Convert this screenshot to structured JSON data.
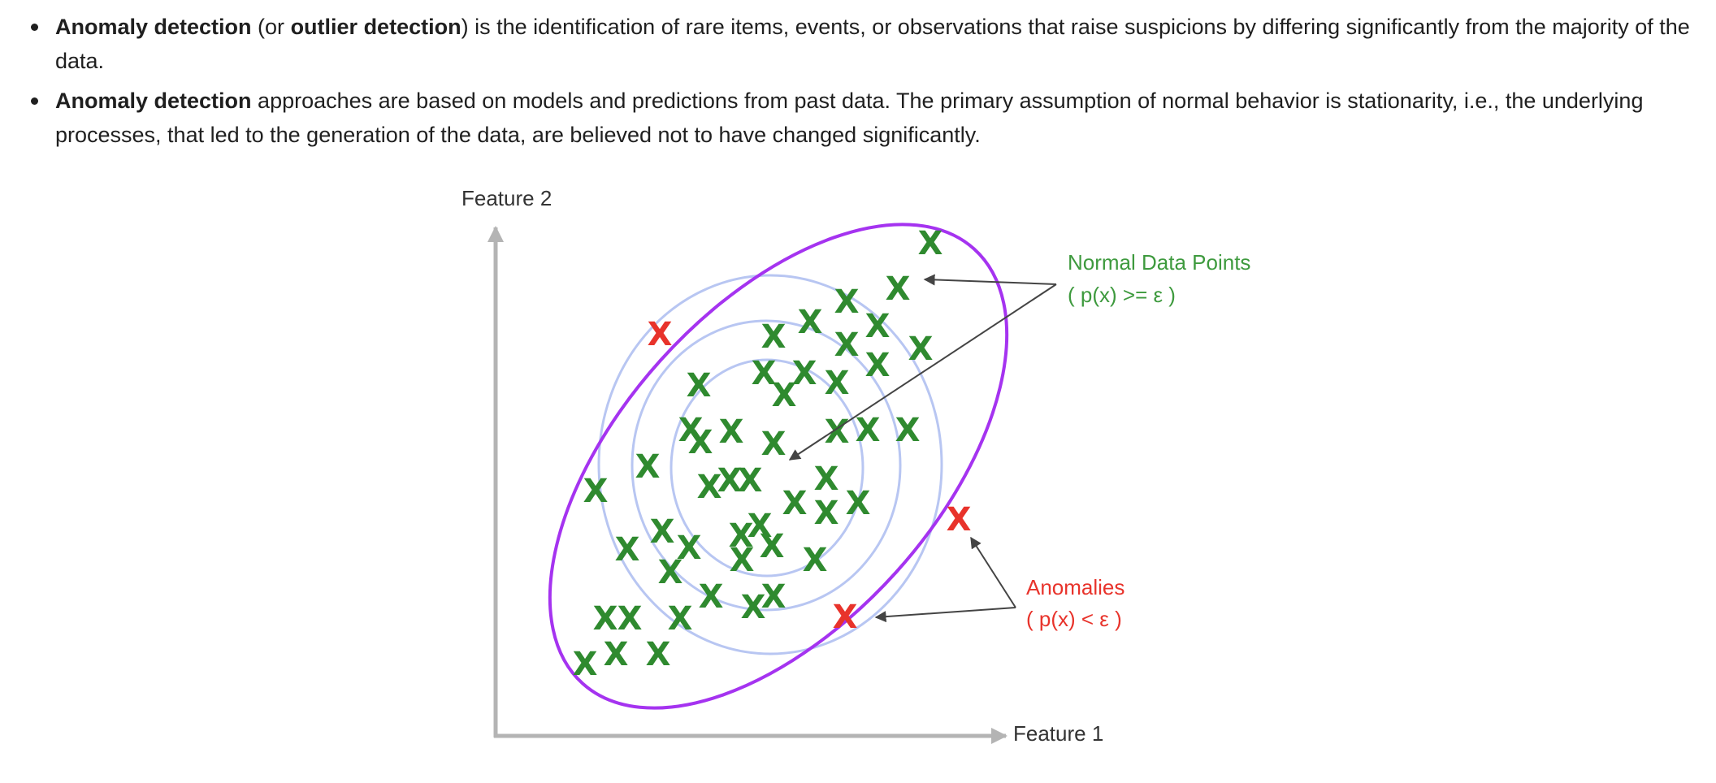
{
  "bullets": [
    {
      "b1": "Anomaly detection",
      "t1": " (or ",
      "b2": "outlier detection",
      "t2": ") is the identification of rare items, events, or observations that raise suspicions by differing significantly from the majority of the data."
    },
    {
      "b1": "Anomaly detection",
      "t1": " approaches are based on models and predictions from past data. The primary assumption of normal behavior is stationarity, i.e., the underlying processes, that led to the generation of the data, are believed not to have changed significantly."
    }
  ],
  "diagram": {
    "y_axis_label": "Feature 2",
    "x_axis_label": "Feature 1",
    "point_glyph": "X",
    "normal_label": "Normal Data Points",
    "normal_condition": "( p(x) >= ε )",
    "anomaly_label": "Anomalies",
    "anomaly_condition": "( p(x) < ε )",
    "colors": {
      "normal": "#2f8a2f",
      "anomaly": "#e8332b",
      "boundary": "#a533f0",
      "contour": "#b8c6f2",
      "axis": "#b4b4b4",
      "arrow": "#555555"
    }
  }
}
